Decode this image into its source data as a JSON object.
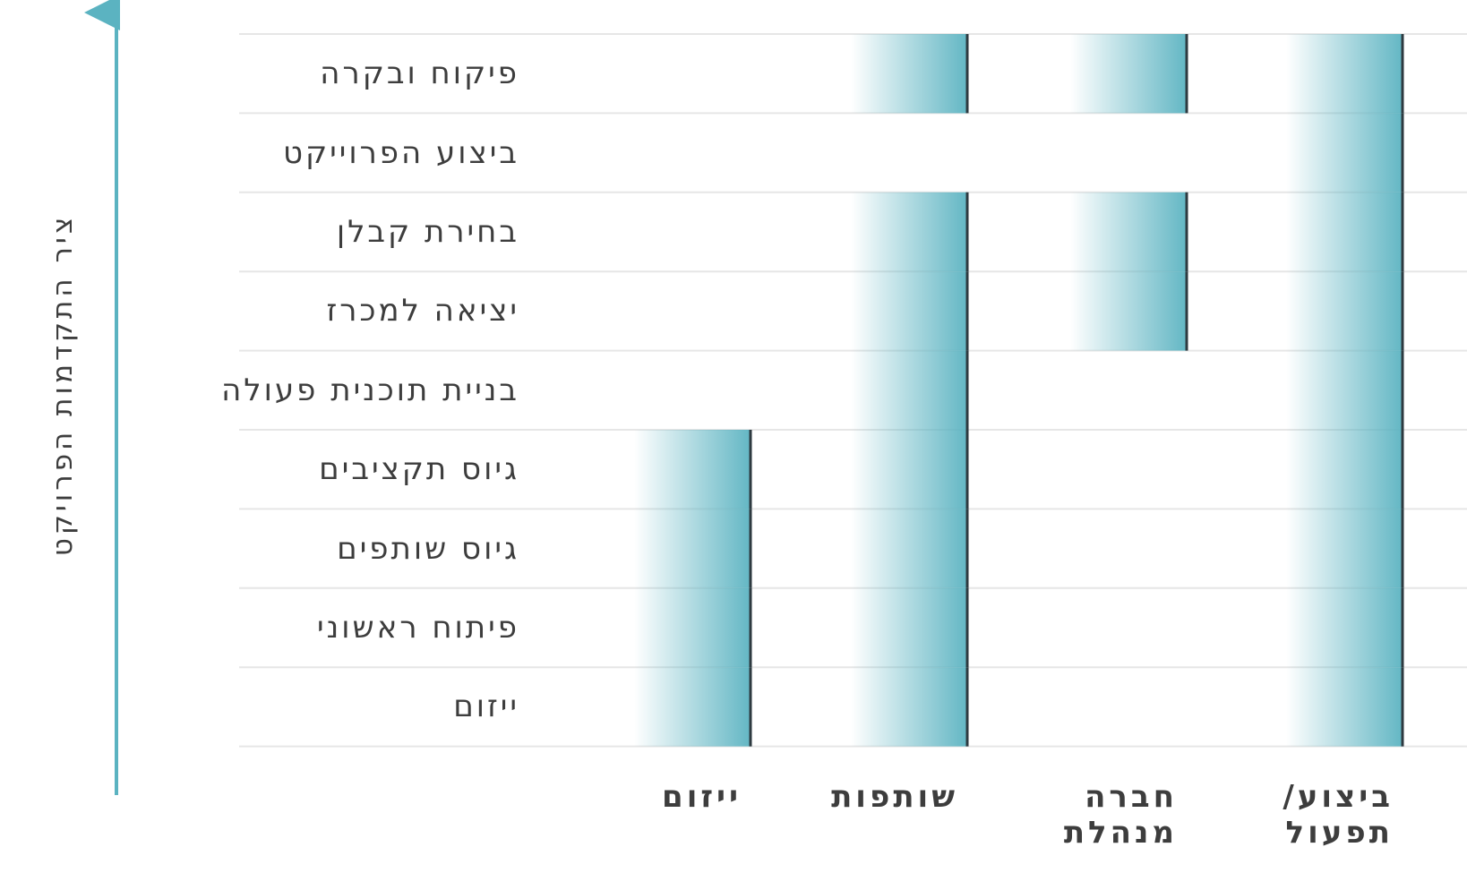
{
  "axis": {
    "title": "ציר התקדמות הפרויקט",
    "color": "#5bb3c1"
  },
  "colors": {
    "accent": "#5bb3c1",
    "bar_line": "#2e3a40",
    "grid": "#e6e6e6"
  },
  "rows": [
    {
      "label": "פיקוח ובקרה"
    },
    {
      "label": "ביצוע הפרוייקט"
    },
    {
      "label": "בחירת קבלן"
    },
    {
      "label": "יציאה למכרז"
    },
    {
      "label": "בניית תוכנית פעולה"
    },
    {
      "label": "גיוס תקציבים"
    },
    {
      "label": "גיוס שותפים"
    },
    {
      "label": "פיתוח ראשוני"
    },
    {
      "label": "ייזום"
    }
  ],
  "columns": [
    {
      "label": "ייזום",
      "active_rows": [
        5,
        6,
        7,
        8
      ]
    },
    {
      "label": "שותפות",
      "active_rows": [
        0,
        2,
        3,
        4,
        5,
        6,
        7,
        8
      ]
    },
    {
      "label": "חברה\nמנהלת",
      "active_rows": [
        0,
        2,
        3
      ]
    },
    {
      "label": "ביצוע/\nתפעול",
      "active_rows": [
        0,
        1,
        2,
        3,
        4,
        5,
        6,
        7,
        8
      ]
    }
  ]
}
